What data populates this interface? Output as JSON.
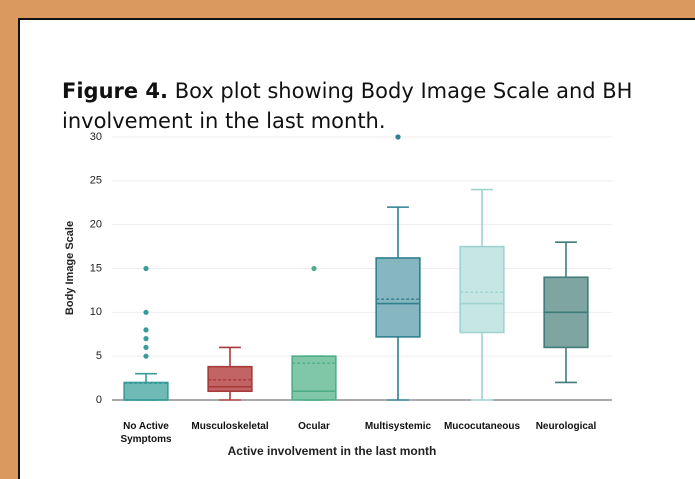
{
  "chart_data": {
    "type": "box",
    "figure_label": "Figure 4.",
    "title": "Box plot showing Body Image Scale and BH involvement in the last month.",
    "xlabel": "Active involvement in the last month",
    "ylabel": "Body Image Scale",
    "categories": [
      "No Active Symptoms",
      "Musculoskeletal",
      "Ocular",
      "Multisystemic",
      "Mucocutaneous",
      "Neurological"
    ],
    "boxes": [
      {
        "min": 0,
        "q1": 0,
        "median": 0,
        "q3": 2,
        "max": 3,
        "mean": 1.9,
        "outliers": [
          5,
          6,
          7,
          8,
          10,
          15
        ]
      },
      {
        "min": 0,
        "q1": 1,
        "median": 1.5,
        "q3": 3.8,
        "max": 6,
        "mean": 2.3,
        "outliers": []
      },
      {
        "min": 0,
        "q1": 0,
        "median": 1,
        "q3": 5,
        "max": 5,
        "mean": 4.2,
        "outliers": [
          15
        ]
      },
      {
        "min": 0,
        "q1": 7.2,
        "median": 11,
        "q3": 16.2,
        "max": 22,
        "mean": 11.5,
        "outliers": [
          30
        ]
      },
      {
        "min": 0,
        "q1": 7.7,
        "median": 11,
        "q3": 17.5,
        "max": 24,
        "mean": 12.3,
        "outliers": []
      },
      {
        "min": 2,
        "q1": 6,
        "median": 10,
        "q3": 14,
        "max": 18,
        "mean": null,
        "outliers": []
      }
    ],
    "colors": [
      "#3a9c9a",
      "#a83a3a",
      "#4fae86",
      "#2f7f8f",
      "#9fd3d0",
      "#3f7c7a"
    ],
    "fills": [
      "#6fb9b6",
      "#c26466",
      "#7fc7a7",
      "#86b6c0",
      "#c6e6e4",
      "#7fa5a2"
    ],
    "ylim": [
      0,
      30
    ],
    "yticks": [
      0,
      5,
      10,
      15,
      20,
      25,
      30
    ],
    "grid": true
  }
}
